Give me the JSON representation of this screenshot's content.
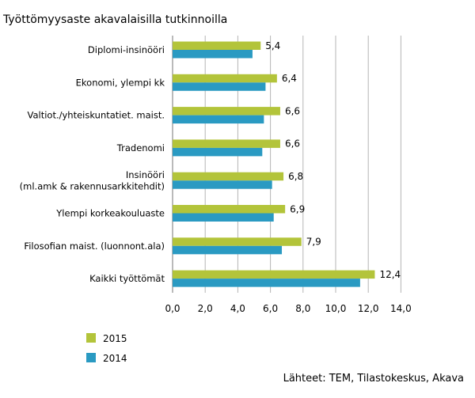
{
  "chart_data": {
    "type": "bar",
    "orientation": "horizontal",
    "title": "Työttömyysaste akavalaisilla tutkinnoilla",
    "categories": [
      [
        "Diplomi-insinööri"
      ],
      [
        "Ekonomi, ylempi kk"
      ],
      [
        "Valtiot./yhteiskuntatiet. maist."
      ],
      [
        "Tradenomi"
      ],
      [
        "Insinööri",
        "(ml.amk & rakennusarkkitehdit)"
      ],
      [
        "Ylempi korkeakouluaste"
      ],
      [
        "Filosofian maist. (luonnont.ala)"
      ],
      [
        "Kaikki työttömät"
      ]
    ],
    "series": [
      {
        "name": "2015",
        "color": "#b3c43a",
        "values": [
          5.4,
          6.4,
          6.6,
          6.6,
          6.8,
          6.9,
          7.9,
          12.4
        ]
      },
      {
        "name": "2014",
        "color": "#2a9ac2",
        "values": [
          4.9,
          5.7,
          5.6,
          5.5,
          6.1,
          6.2,
          6.7,
          11.5
        ]
      }
    ],
    "value_labels": [
      "5,4",
      "6,4",
      "6,6",
      "6,6",
      "6,8",
      "6,9",
      "7,9",
      "12,4"
    ],
    "xlim": [
      0,
      14
    ],
    "xticks": [
      "0,0",
      "2,0",
      "4,0",
      "6,0",
      "8,0",
      "10,0",
      "12,0",
      "14,0"
    ],
    "grid": "vertical",
    "legend_position": "bottom-left",
    "source": "Lähteet: TEM, Tilastokeskus, Akava"
  }
}
